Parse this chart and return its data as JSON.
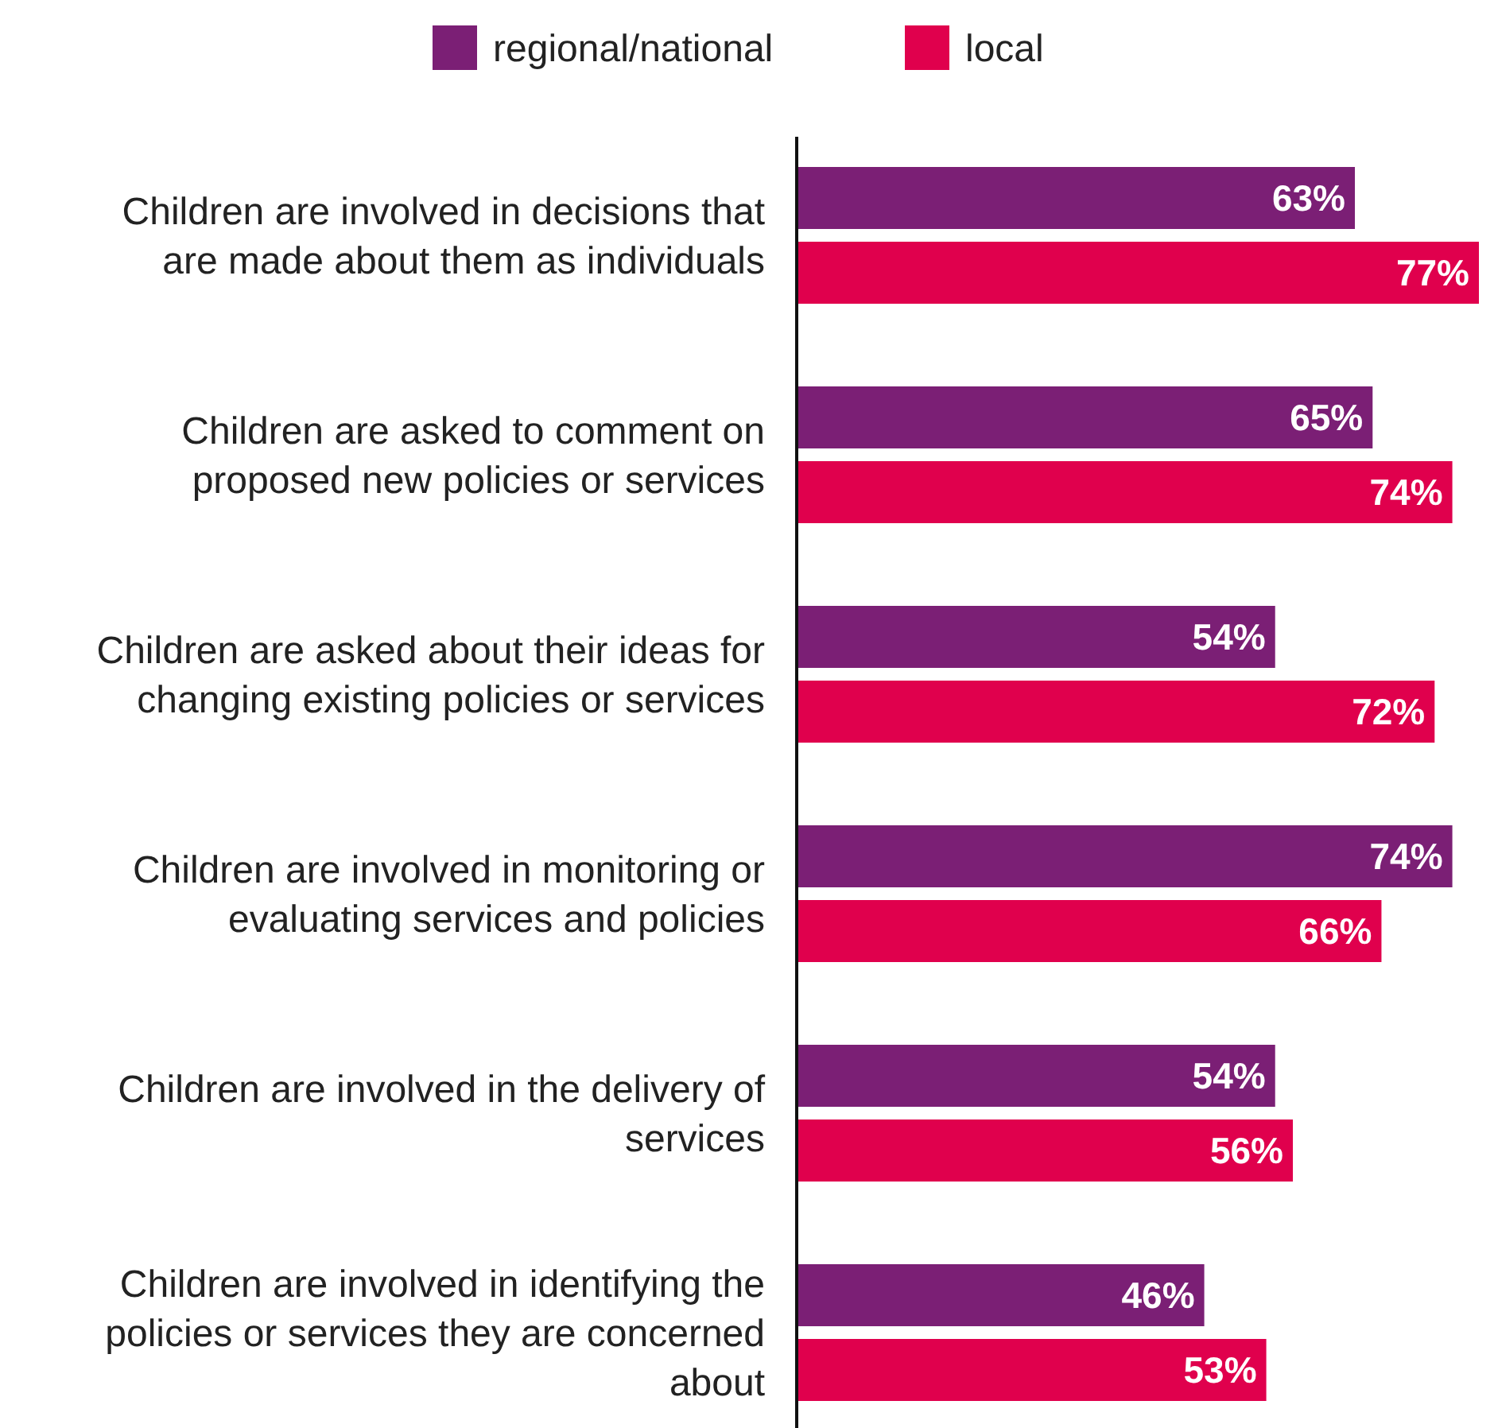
{
  "chart_data": {
    "type": "bar",
    "orientation": "horizontal",
    "categories": [
      "Children are involved in decisions that are made about them as individuals",
      "Children are asked to comment on proposed new policies or services",
      "Children are asked about their ideas for changing existing policies or services",
      "Children are involved in monitoring or evaluating services and policies",
      "Children are involved in the delivery of services",
      "Children are involved in identifying the policies or services they are concerned about"
    ],
    "series": [
      {
        "name": "regional/national",
        "color": "#7b1f75",
        "values": [
          63,
          65,
          54,
          74,
          54,
          46
        ],
        "value_labels": [
          "63%",
          "65%",
          "54%",
          "74%",
          "54%",
          "46%"
        ]
      },
      {
        "name": "local",
        "color": "#e0004d",
        "values": [
          77,
          74,
          72,
          66,
          56,
          53
        ],
        "value_labels": [
          "77%",
          "74%",
          "72%",
          "66%",
          "56%",
          "53%"
        ]
      }
    ],
    "legend": "top"
  }
}
